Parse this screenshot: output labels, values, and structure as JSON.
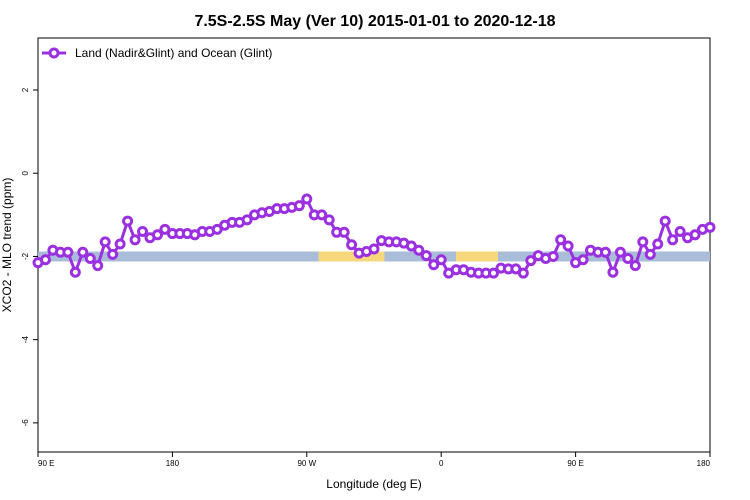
{
  "chart_data": {
    "type": "line",
    "title": "7.5S-2.5S May (Ver 10)   2015-01-01 to 2020-12-18",
    "xlabel": "Longitude (deg E)",
    "ylabel": "XCO2 - MLO trend (ppm)",
    "x_ticks": [
      {
        "value": 90,
        "label": "90 E"
      },
      {
        "value": 180,
        "label": "180"
      },
      {
        "value": 270,
        "label": "90 W"
      },
      {
        "value": 360,
        "label": "0"
      },
      {
        "value": 450,
        "label": "90 E"
      },
      {
        "value": 540,
        "label": "180"
      }
    ],
    "y_ticks": [
      2,
      0,
      -2,
      -4,
      -6
    ],
    "xlim": [
      90,
      540
    ],
    "ylim": [
      -6.7,
      3.25
    ],
    "grid": false,
    "legend": {
      "position": "top-left"
    },
    "colors": {
      "series": "#9b30e0",
      "land_band": "#a9bcd8",
      "ocean_band": "#f7d77c"
    },
    "reference_band": {
      "y": -2.0,
      "segments": [
        {
          "type": "land",
          "x_start": 90,
          "x_end": 278
        },
        {
          "type": "ocean",
          "x_start": 278,
          "x_end": 322
        },
        {
          "type": "land",
          "x_start": 322,
          "x_end": 370
        },
        {
          "type": "ocean",
          "x_start": 370,
          "x_end": 398
        },
        {
          "type": "land",
          "x_start": 398,
          "x_end": 540
        }
      ]
    },
    "series": [
      {
        "name": "Land (Nadir&Glint) and Ocean (Glint)",
        "x": [
          90,
          95,
          100,
          105,
          110,
          115,
          120,
          125,
          130,
          135,
          140,
          145,
          150,
          155,
          160,
          165,
          170,
          175,
          180,
          185,
          190,
          195,
          200,
          205,
          210,
          215,
          220,
          225,
          230,
          235,
          240,
          245,
          250,
          255,
          260,
          265,
          270,
          275,
          280,
          285,
          290,
          295,
          300,
          305,
          310,
          315,
          320,
          325,
          330,
          335,
          340,
          345,
          350,
          355,
          360,
          365,
          370,
          375,
          380,
          385,
          390,
          395,
          400,
          405,
          410,
          415,
          420,
          425,
          430,
          435,
          440,
          445,
          450,
          455,
          460,
          465,
          470,
          475,
          480,
          485,
          490,
          495,
          500,
          505,
          510,
          515,
          520,
          525,
          530,
          535,
          540
        ],
        "y": [
          -2.15,
          -2.08,
          -1.85,
          -1.9,
          -1.9,
          -2.38,
          -1.9,
          -2.05,
          -2.22,
          -1.65,
          -1.95,
          -1.7,
          -1.15,
          -1.6,
          -1.4,
          -1.55,
          -1.48,
          -1.35,
          -1.45,
          -1.45,
          -1.45,
          -1.48,
          -1.4,
          -1.4,
          -1.35,
          -1.25,
          -1.18,
          -1.18,
          -1.12,
          -1.0,
          -0.95,
          -0.92,
          -0.85,
          -0.85,
          -0.82,
          -0.78,
          -0.62,
          -1.0,
          -1.0,
          -1.12,
          -1.42,
          -1.42,
          -1.72,
          -1.92,
          -1.88,
          -1.82,
          -1.62,
          -1.65,
          -1.65,
          -1.68,
          -1.75,
          -1.85,
          -1.98,
          -2.2,
          -2.08,
          -2.4,
          -2.32,
          -2.32,
          -2.38,
          -2.4,
          -2.4,
          -2.4,
          -2.28,
          -2.3,
          -2.3,
          -2.4,
          -2.1,
          -1.98,
          -2.05,
          -2.0,
          -1.6,
          -1.75,
          -2.15,
          -2.08,
          -1.85,
          -1.9,
          -1.9,
          -2.38,
          -1.9,
          -2.05,
          -2.22,
          -1.65,
          -1.95,
          -1.7,
          -1.15,
          -1.6,
          -1.4,
          -1.55,
          -1.48,
          -1.35,
          -1.3
        ]
      }
    ]
  }
}
